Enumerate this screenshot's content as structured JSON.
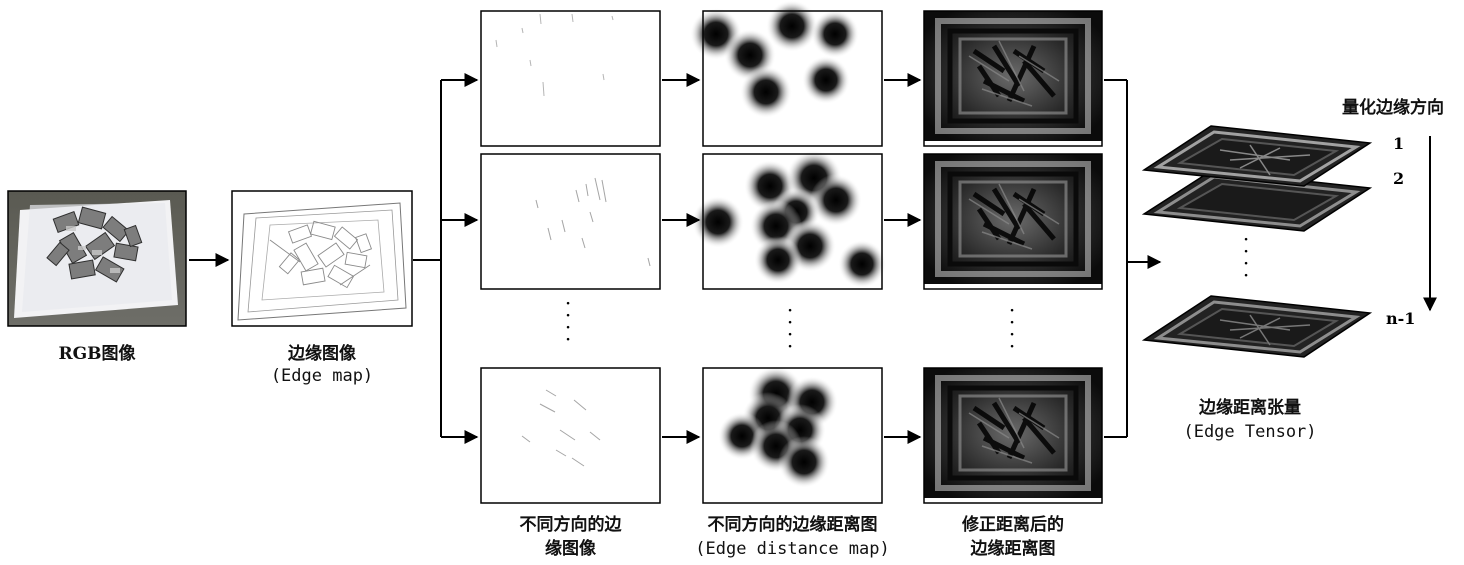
{
  "labels": {
    "rgb": "RGB图像",
    "edge_cn": "边缘图像",
    "edge_en": "(Edge map)",
    "dir_edges_l1": "不同方向的边",
    "dir_edges_l2": "缘图像",
    "dist_cn": "不同方向的边缘距离图",
    "dist_en": "(Edge distance map)",
    "corr_l1": "修正距离后的",
    "corr_l2": "边缘距离图",
    "tensor_cn": "边缘距离张量",
    "tensor_en": "(Edge Tensor)",
    "quant": "量化边缘方向",
    "layer1": "1",
    "layer2": "2",
    "layerN": "n-1"
  },
  "colors": {
    "stroke": "#000000",
    "paper": "#ffffff",
    "dark": "#111111"
  }
}
